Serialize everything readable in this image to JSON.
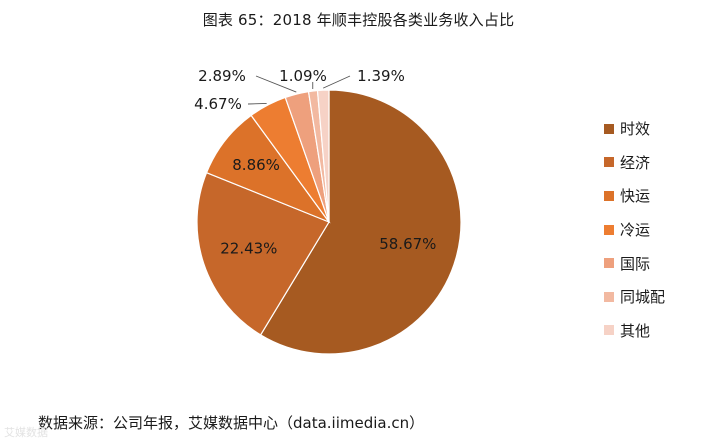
{
  "title": "图表 65：2018 年顺丰控股各类业务收入占比",
  "source": "数据来源：公司年报，艾媒数据中心（data.iimedia.cn）",
  "watermark": "艾媒数据",
  "chart_data": {
    "type": "pie",
    "title": "图表 65：2018 年顺丰控股各类业务收入占比",
    "start_angle_deg": 0,
    "direction": "clockwise",
    "legend_position": "right",
    "slices": [
      {
        "label": "时效",
        "value": 58.67,
        "display": "58.67%",
        "color": "#a65a21"
      },
      {
        "label": "经济",
        "value": 22.43,
        "display": "22.43%",
        "color": "#c6672a"
      },
      {
        "label": "快运",
        "value": 8.86,
        "display": "8.86%",
        "color": "#dc7229"
      },
      {
        "label": "冷运",
        "value": 4.67,
        "display": "4.67%",
        "color": "#ed7d31"
      },
      {
        "label": "国际",
        "value": 2.89,
        "display": "2.89%",
        "color": "#eea07d"
      },
      {
        "label": "同城配",
        "value": 1.09,
        "display": "1.09%",
        "color": "#f2b9a1"
      },
      {
        "label": "其他",
        "value": 1.39,
        "display": "1.39%",
        "color": "#f6d2c6"
      }
    ]
  }
}
